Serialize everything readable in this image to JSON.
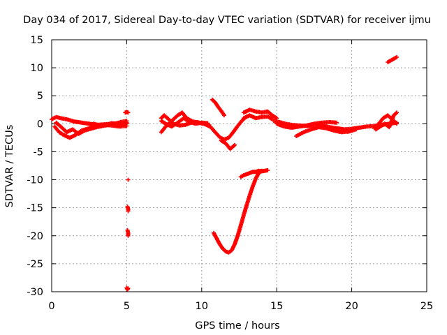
{
  "chart_data": {
    "type": "scatter",
    "title": "Day 034 of 2017, Sidereal Day-to-day VTEC variation (SDTVAR) for receiver ijmu",
    "xlabel": "GPS time / hours",
    "ylabel": "SDTVAR / TECUs",
    "xlim": [
      0,
      25
    ],
    "ylim": [
      -30,
      15
    ],
    "xticks": [
      0,
      5,
      10,
      15,
      20,
      25
    ],
    "yticks": [
      -30,
      -25,
      -20,
      -15,
      -10,
      -5,
      0,
      5,
      10,
      15
    ],
    "grid": true,
    "marker": "plus",
    "series_color": "#ff0000",
    "segments": [
      {
        "name": "band-a",
        "x": [
          0.0,
          0.3,
          0.6,
          1.0,
          1.5,
          2.0,
          2.5,
          3.0,
          3.5,
          4.0,
          4.5,
          5.0
        ],
        "y": [
          0.8,
          1.2,
          1.0,
          0.8,
          0.4,
          0.2,
          0.0,
          -0.2,
          -0.1,
          0.0,
          0.1,
          0.2
        ]
      },
      {
        "name": "band-b",
        "x": [
          0.2,
          0.5,
          0.8,
          1.2,
          1.6,
          2.0,
          2.5,
          3.0,
          3.5,
          4.0,
          4.5,
          5.0
        ],
        "y": [
          -0.5,
          -1.5,
          -2.0,
          -2.5,
          -2.0,
          -1.2,
          -0.8,
          -0.5,
          -0.2,
          -0.3,
          -0.5,
          -0.4
        ]
      },
      {
        "name": "band-c",
        "x": [
          0.3,
          0.6,
          1.0,
          1.4,
          1.8,
          2.2,
          2.6,
          3.0,
          3.4,
          3.8,
          4.2,
          4.6,
          5.0
        ],
        "y": [
          0.2,
          -0.5,
          -1.5,
          -1.0,
          -1.8,
          -1.2,
          -0.9,
          -0.6,
          -0.4,
          -0.2,
          0.0,
          0.3,
          0.5
        ]
      },
      {
        "name": "band-d",
        "x": [
          2.8,
          3.2,
          3.6,
          4.0,
          4.4,
          4.8,
          5.0
        ],
        "y": [
          0.0,
          -0.3,
          -0.2,
          0.1,
          0.0,
          -0.1,
          0.0
        ]
      },
      {
        "name": "isolated-1",
        "x": [
          4.9,
          5.0,
          5.1
        ],
        "y": [
          2.0,
          2.1,
          2.0
        ]
      },
      {
        "name": "isolated-2",
        "x": [
          5.1
        ],
        "y": [
          -10.0
        ]
      },
      {
        "name": "isolated-3",
        "x": [
          5.05,
          5.1,
          5.1
        ],
        "y": [
          -14.8,
          -15.2,
          -15.6
        ]
      },
      {
        "name": "isolated-4",
        "x": [
          5.05,
          5.1,
          5.1
        ],
        "y": [
          -19.0,
          -19.4,
          -20.0
        ]
      },
      {
        "name": "isolated-5",
        "x": [
          5.0,
          5.05,
          5.1
        ],
        "y": [
          -29.3,
          -29.6,
          -29.4
        ]
      },
      {
        "name": "band-e",
        "x": [
          7.3,
          7.6,
          8.0,
          8.4,
          8.7,
          9.0,
          9.4,
          9.8,
          10.2,
          10.5
        ],
        "y": [
          -1.5,
          -0.5,
          0.5,
          1.5,
          2.0,
          1.0,
          0.4,
          0.2,
          0.0,
          -0.3
        ]
      },
      {
        "name": "band-f",
        "x": [
          7.3,
          7.6,
          8.0,
          8.4,
          8.8,
          9.2,
          9.6,
          10.0,
          10.4
        ],
        "y": [
          0.5,
          0.0,
          -0.5,
          0.2,
          1.0,
          0.3,
          0.0,
          0.2,
          0.1
        ]
      },
      {
        "name": "band-g",
        "x": [
          7.3,
          7.5,
          7.8,
          8.1,
          8.5,
          8.9,
          9.3,
          9.7,
          10.1,
          10.5
        ],
        "y": [
          1.0,
          1.5,
          0.8,
          0.0,
          -0.3,
          -0.2,
          0.2,
          0.3,
          0.0,
          -0.2
        ]
      },
      {
        "name": "dip",
        "x": [
          10.3,
          10.6,
          10.9,
          11.2,
          11.5,
          11.8,
          12.1,
          12.4,
          12.7,
          13.0
        ],
        "y": [
          -0.2,
          -0.6,
          -1.5,
          -2.4,
          -2.8,
          -2.5,
          -1.5,
          -0.4,
          0.6,
          1.3
        ]
      },
      {
        "name": "dip-low",
        "x": [
          11.3,
          11.6,
          11.9,
          12.2
        ],
        "y": [
          -3.0,
          -3.5,
          -4.5,
          -3.8
        ]
      },
      {
        "name": "ridge",
        "x": [
          10.7,
          10.9,
          11.1,
          11.3,
          11.5
        ],
        "y": [
          4.3,
          3.8,
          3.0,
          2.3,
          1.5
        ]
      },
      {
        "name": "band-h",
        "x": [
          12.8,
          13.2,
          13.6,
          14.0,
          14.4,
          14.7,
          15.0
        ],
        "y": [
          2.0,
          2.5,
          2.2,
          2.0,
          2.2,
          1.5,
          1.0
        ]
      },
      {
        "name": "band-i",
        "x": [
          12.8,
          13.2,
          13.6,
          14.0,
          14.4,
          14.7
        ],
        "y": [
          1.0,
          1.5,
          1.0,
          1.2,
          1.3,
          0.8
        ]
      },
      {
        "name": "steep-rise",
        "x": [
          10.8,
          11.0,
          11.2,
          11.4,
          11.6,
          11.8,
          12.0,
          12.2,
          12.4,
          12.6,
          12.8,
          13.0,
          13.2,
          13.4,
          13.6,
          13.8,
          14.0
        ],
        "y": [
          -19.5,
          -20.5,
          -21.5,
          -22.3,
          -22.8,
          -23.0,
          -22.6,
          -21.5,
          -20.0,
          -18.2,
          -16.3,
          -14.5,
          -12.8,
          -11.2,
          -9.8,
          -8.8,
          -8.4
        ]
      },
      {
        "name": "upper-branch",
        "x": [
          12.6,
          12.8,
          13.0,
          13.2,
          13.4,
          13.6,
          13.8,
          14.0,
          14.2,
          14.4
        ],
        "y": [
          -9.5,
          -9.2,
          -9.0,
          -8.8,
          -8.6,
          -8.6,
          -8.4,
          -8.5,
          -8.4,
          -8.3
        ]
      },
      {
        "name": "band-j",
        "x": [
          14.8,
          15.2,
          15.6,
          16.0,
          16.5,
          17.0,
          17.5,
          18.0,
          18.5,
          19.0,
          19.5,
          20.0,
          20.5,
          21.0,
          21.5,
          22.0,
          22.5,
          23.0
        ],
        "y": [
          0.5,
          0.3,
          0.0,
          -0.2,
          -0.3,
          -0.4,
          -0.2,
          -0.3,
          -0.6,
          -0.8,
          -1.0,
          -0.9,
          -0.7,
          -0.5,
          -0.4,
          -0.2,
          0.0,
          0.2
        ]
      },
      {
        "name": "band-k",
        "x": [
          16.3,
          16.8,
          17.3,
          17.8,
          18.3,
          18.8,
          19.3,
          19.8,
          20.3
        ],
        "y": [
          -2.2,
          -1.5,
          -1.0,
          -0.6,
          -0.8,
          -1.2,
          -1.5,
          -1.4,
          -1.0
        ]
      },
      {
        "name": "band-l",
        "x": [
          15.0,
          15.5,
          16.0,
          16.5,
          17.0,
          17.5,
          18.0,
          18.5,
          19.0
        ],
        "y": [
          0.0,
          -0.5,
          -0.7,
          -0.5,
          -0.3,
          0.0,
          0.2,
          0.3,
          0.2
        ]
      },
      {
        "name": "band-m",
        "x": [
          21.5,
          21.8,
          22.1,
          22.4,
          22.7,
          23.0
        ],
        "y": [
          -0.8,
          0.0,
          1.0,
          1.5,
          0.8,
          0.0
        ]
      },
      {
        "name": "band-n",
        "x": [
          21.6,
          21.9,
          22.2,
          22.5,
          22.8,
          23.0
        ],
        "y": [
          -1.0,
          -0.5,
          0.0,
          -0.6,
          1.5,
          2.0
        ]
      },
      {
        "name": "upper-right",
        "x": [
          22.4,
          22.6,
          22.8,
          23.0
        ],
        "y": [
          11.0,
          11.3,
          11.6,
          11.9
        ]
      }
    ]
  }
}
